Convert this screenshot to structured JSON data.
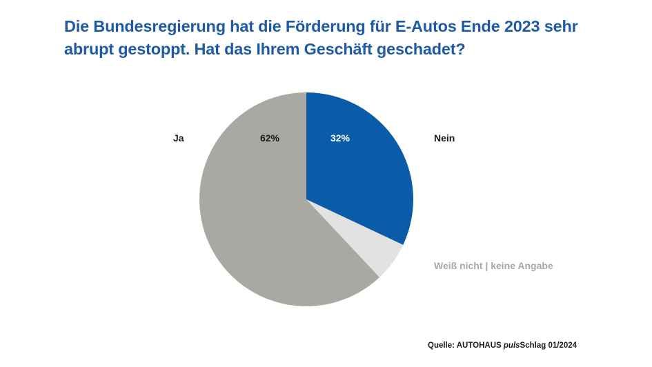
{
  "title": {
    "line1": "Die Bundesregierung hat die Förderung für E-Autos Ende 2023 sehr",
    "line2": "abrupt gestoppt. Hat das Ihrem Geschäft geschadet?"
  },
  "chart_data": {
    "type": "pie",
    "title": "Die Bundesregierung hat die Förderung für E-Autos Ende 2023 sehr abrupt gestoppt. Hat das Ihrem Geschäft geschadet?",
    "slices": [
      {
        "label": "Nein",
        "value": 32,
        "value_label": "32%",
        "color": "#0a5ca8"
      },
      {
        "label": "Weiß nicht | keine Angabe",
        "value": 6,
        "value_label": "",
        "color": "#e2e2e1"
      },
      {
        "label": "Ja",
        "value": 62,
        "value_label": "62%",
        "color": "#a9a8a3"
      }
    ],
    "start_angle_deg": 0,
    "direction": "clockwise"
  },
  "source": {
    "prefix": "Quelle: AUTOHAUS ",
    "italic": "puls",
    "suffix": "Schlag 01/2024"
  }
}
